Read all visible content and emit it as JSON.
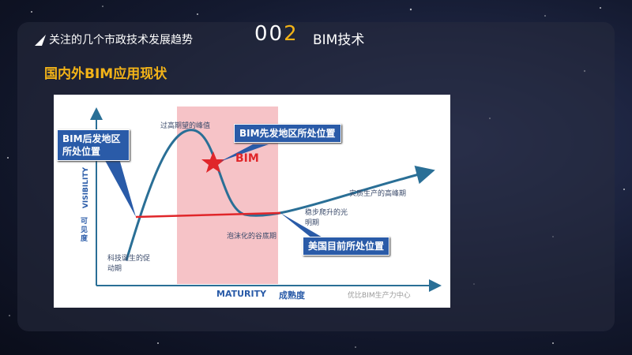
{
  "header": {
    "breadcrumb": "关注的几个市政技术发展趋势",
    "number_main": "00",
    "number_accent": "2",
    "section": "BIM技术"
  },
  "subtitle": "国内外BIM应用现状",
  "diagram": {
    "y_axis": "VISIBILITY",
    "y_axis_cn": "可见度",
    "x_axis": "MATURITY",
    "x_axis_cn": "成熟度",
    "phases": [
      "科技诞生的促动期",
      "过高期望的峰值",
      "泡沫化的谷底期",
      "稳步爬升的光明期",
      "实质生产的高峰期"
    ],
    "star_label": "BIM",
    "callouts": [
      "BIM后发地区所处位置",
      "BIM先发地区所处位置",
      "美国目前所处位置"
    ],
    "watermark": "优比BIM生产力中心"
  }
}
